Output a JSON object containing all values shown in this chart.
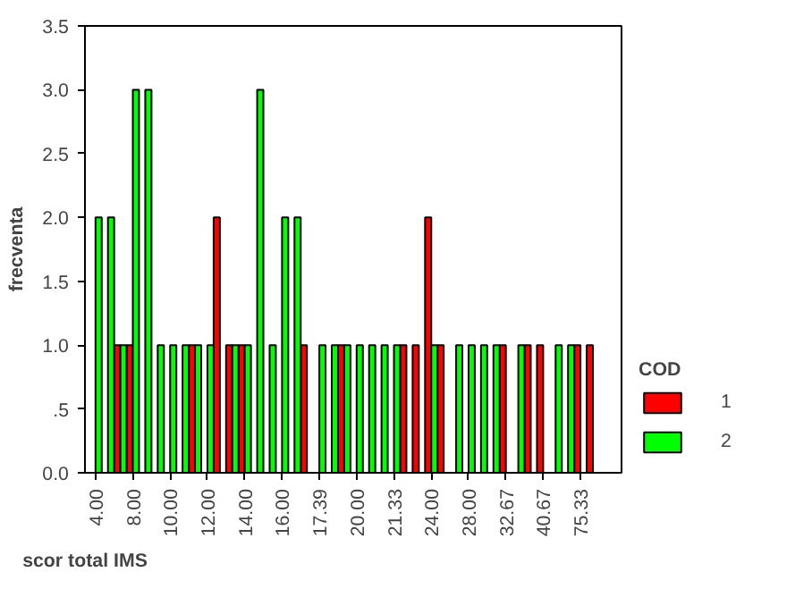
{
  "chart_data": {
    "type": "bar",
    "xlabel": "scor total IMS",
    "ylabel": "frecventa",
    "legend_title": "COD",
    "legend": "right",
    "grid": false,
    "categories": [
      "4.00",
      null,
      null,
      "8.00",
      null,
      null,
      "10.00",
      null,
      null,
      "12.00",
      null,
      null,
      "14.00",
      null,
      null,
      "16.00",
      null,
      null,
      "17.39",
      null,
      null,
      "20.00",
      null,
      null,
      "21.33",
      null,
      null,
      "24.00",
      null,
      null,
      "28.00",
      null,
      null,
      "32.67",
      null,
      null,
      "40.67",
      null,
      null,
      "75.33",
      null
    ],
    "ylim": [
      0,
      3.5
    ],
    "yticks": [
      {
        "value": 0,
        "label": "0.0"
      },
      {
        "value": 0.5,
        "label": ".5"
      },
      {
        "value": 1,
        "label": "1.0"
      },
      {
        "value": 1.5,
        "label": "1.5"
      },
      {
        "value": 2,
        "label": "2.0"
      },
      {
        "value": 2.5,
        "label": "2.5"
      },
      {
        "value": 3,
        "label": "3.0"
      },
      {
        "value": 3.5,
        "label": "3.5"
      }
    ],
    "series": [
      {
        "name": "1",
        "color": "#ff0000",
        "values": [
          null,
          null,
          1,
          1,
          null,
          null,
          null,
          null,
          1,
          null,
          2,
          1,
          1,
          null,
          null,
          null,
          null,
          1,
          null,
          null,
          1,
          null,
          null,
          null,
          null,
          1,
          1,
          2,
          1,
          null,
          null,
          null,
          null,
          1,
          null,
          1,
          1,
          null,
          null,
          1,
          1
        ]
      },
      {
        "name": "2",
        "color": "#00ff00",
        "values": [
          2,
          2,
          1,
          3,
          3,
          1,
          1,
          1,
          1,
          1,
          null,
          1,
          1,
          3,
          1,
          2,
          2,
          null,
          1,
          1,
          1,
          1,
          1,
          1,
          1,
          null,
          null,
          1,
          null,
          1,
          1,
          1,
          1,
          null,
          1,
          null,
          null,
          1,
          1,
          null,
          null
        ]
      }
    ]
  }
}
